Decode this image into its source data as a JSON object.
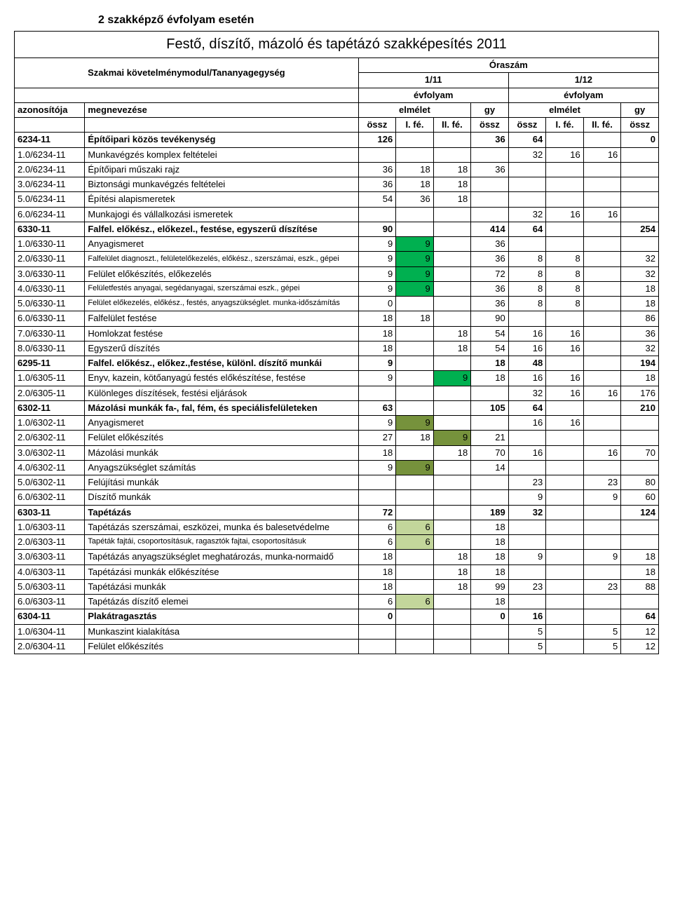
{
  "top_heading": "2 szakképző évfolyam esetén",
  "title": "Festő, díszítő, mázoló és tapétázó szakképesítés 2011",
  "headers": {
    "module": "Szakmai követelménymodul/Tananyagegység",
    "oraszam": "Óraszám",
    "y111": "1/11",
    "y112": "1/12",
    "evfolyam": "évfolyam",
    "azon": "azonosítója",
    "megnev": "megnevezése",
    "elmelet": "elmélet",
    "gy": "gy",
    "ossz": "össz",
    "ife": "I. fé.",
    "iife": "II. fé."
  },
  "highlight_colors": {
    "green_dark": "#00b050",
    "green_olive": "#76923c",
    "green_light": "#c3d69b"
  },
  "rows": [
    {
      "id": "6234-11",
      "name": "Építőipari közös tevékenység",
      "bold": true,
      "v": [
        "126",
        "",
        "",
        "36",
        "64",
        "",
        "",
        "0"
      ]
    },
    {
      "id": "1.0/6234-11",
      "name": "Munkavégzés komplex feltételei",
      "v": [
        "",
        "",
        "",
        "",
        "32",
        "16",
        "16",
        ""
      ]
    },
    {
      "id": "2.0/6234-11",
      "name": "Építőipari műszaki rajz",
      "v": [
        "36",
        "18",
        "18",
        "36",
        "",
        "",
        "",
        ""
      ]
    },
    {
      "id": "3.0/6234-11",
      "name": "Biztonsági munkavégzés feltételei",
      "v": [
        "36",
        "18",
        "18",
        "",
        "",
        "",
        "",
        ""
      ]
    },
    {
      "id": "5.0/6234-11",
      "name": "Építési alapismeretek",
      "v": [
        "54",
        "36",
        "18",
        "",
        "",
        "",
        "",
        ""
      ]
    },
    {
      "id": "6.0/6234-11",
      "name": "Munkajogi és vállalkozási ismeretek",
      "v": [
        "",
        "",
        "",
        "",
        "32",
        "16",
        "16",
        ""
      ]
    },
    {
      "id": "6330-11",
      "name": "Falfel. előkész., előkezel., festése, egyszerű díszítése",
      "bold": true,
      "v": [
        "90",
        "",
        "",
        "414",
        "64",
        "",
        "",
        "254"
      ]
    },
    {
      "id": "1.0/6330-11",
      "name": "Anyagismeret",
      "v": [
        "9",
        "9",
        "",
        "36",
        "",
        "",
        "",
        ""
      ],
      "hl": [
        null,
        "green_dark",
        null,
        null,
        null,
        null,
        null,
        null
      ]
    },
    {
      "id": "2.0/6330-11",
      "name": "Falfelület diagnoszt., felületelőkezelés, előkész., szerszámai, eszk., gépei",
      "small": true,
      "v": [
        "9",
        "9",
        "",
        "36",
        "8",
        "8",
        "",
        "32"
      ],
      "hl": [
        null,
        "green_dark",
        null,
        null,
        null,
        null,
        null,
        null
      ]
    },
    {
      "id": "3.0/6330-11",
      "name": "Felület előkészítés, előkezelés",
      "v": [
        "9",
        "9",
        "",
        "72",
        "8",
        "8",
        "",
        "32"
      ],
      "hl": [
        null,
        "green_dark",
        null,
        null,
        null,
        null,
        null,
        null
      ]
    },
    {
      "id": "4.0/6330-11",
      "name": "Felületfestés anyagai, segédanyagai, szerszámai eszk., gépei",
      "small": true,
      "v": [
        "9",
        "9",
        "",
        "36",
        "8",
        "8",
        "",
        "18"
      ],
      "hl": [
        null,
        "green_dark",
        null,
        null,
        null,
        null,
        null,
        null
      ]
    },
    {
      "id": "5.0/6330-11",
      "name": "Felület előkezelés, előkész., festés, anyagszükséglet. munka-időszámítás",
      "small": true,
      "v": [
        "0",
        "",
        "",
        "36",
        "8",
        "8",
        "",
        "18"
      ]
    },
    {
      "id": "6.0/6330-11",
      "name": "Falfelület festése",
      "v": [
        "18",
        "18",
        "",
        "90",
        "",
        "",
        "",
        "86"
      ]
    },
    {
      "id": "7.0/6330-11",
      "name": "Homlokzat festése",
      "v": [
        "18",
        "",
        "18",
        "54",
        "16",
        "16",
        "",
        "36"
      ]
    },
    {
      "id": "8.0/6330-11",
      "name": "Egyszerű díszítés",
      "v": [
        "18",
        "",
        "18",
        "54",
        "16",
        "16",
        "",
        "32"
      ]
    },
    {
      "id": "6295-11",
      "name": "Falfel. előkész., előkez.,festése, különl. díszítő munkái",
      "bold": true,
      "v": [
        "9",
        "",
        "",
        "18",
        "48",
        "",
        "",
        "194"
      ]
    },
    {
      "id": "1.0/6305-11",
      "name": "Enyv, kazein, kötőanyagú festés előkészítése, festése",
      "v": [
        "9",
        "",
        "9",
        "18",
        "16",
        "16",
        "",
        "18"
      ],
      "hl": [
        null,
        null,
        "green_dark",
        null,
        null,
        null,
        null,
        null
      ]
    },
    {
      "id": "2.0/6305-11",
      "name": "Különleges díszítések, festési eljárások",
      "v": [
        "",
        "",
        "",
        "",
        "32",
        "16",
        "16",
        "176"
      ]
    },
    {
      "id": "6302-11",
      "name": "Mázolási munkák fa-, fal, fém, és speciálisfelületeken",
      "bold": true,
      "v": [
        "63",
        "",
        "",
        "105",
        "64",
        "",
        "",
        "210"
      ]
    },
    {
      "id": "1.0/6302-11",
      "name": "Anyagismeret",
      "v": [
        "9",
        "9",
        "",
        "",
        "16",
        "16",
        "",
        ""
      ],
      "hl": [
        null,
        "green_olive",
        null,
        null,
        null,
        null,
        null,
        null
      ]
    },
    {
      "id": "2.0/6302-11",
      "name": "Felület előkészítés",
      "v": [
        "27",
        "18",
        "9",
        "21",
        "",
        "",
        "",
        ""
      ],
      "hl": [
        null,
        null,
        "green_olive",
        null,
        null,
        null,
        null,
        null
      ]
    },
    {
      "id": "3.0/6302-11",
      "name": "Mázolási munkák",
      "v": [
        "18",
        "",
        "18",
        "70",
        "16",
        "",
        "16",
        "70"
      ]
    },
    {
      "id": "4.0/6302-11",
      "name": "Anyagszükséglet számítás",
      "v": [
        "9",
        "9",
        "",
        "14",
        "",
        "",
        "",
        ""
      ],
      "hl": [
        null,
        "green_olive",
        null,
        null,
        null,
        null,
        null,
        null
      ]
    },
    {
      "id": "5.0/6302-11",
      "name": "Felújítási munkák",
      "v": [
        "",
        "",
        "",
        "",
        "23",
        "",
        "23",
        "80"
      ]
    },
    {
      "id": "6.0/6302-11",
      "name": "Díszítő munkák",
      "v": [
        "",
        "",
        "",
        "",
        "9",
        "",
        "9",
        "60"
      ]
    },
    {
      "id": "6303-11",
      "name": "Tapétázás",
      "bold": true,
      "v": [
        "72",
        "",
        "",
        "189",
        "32",
        "",
        "",
        "124"
      ]
    },
    {
      "id": "1.0/6303-11",
      "name": "Tapétázás szerszámai, eszközei, munka és balesetvédelme",
      "v": [
        "6",
        "6",
        "",
        "18",
        "",
        "",
        "",
        ""
      ],
      "hl": [
        null,
        "green_light",
        null,
        null,
        null,
        null,
        null,
        null
      ]
    },
    {
      "id": "2.0/6303-11",
      "name": "Tapéták fajtái, csoportosításuk, ragasztók fajtai, csoportosításuk",
      "small": true,
      "v": [
        "6",
        "6",
        "",
        "18",
        "",
        "",
        "",
        ""
      ],
      "hl": [
        null,
        "green_light",
        null,
        null,
        null,
        null,
        null,
        null
      ]
    },
    {
      "id": "3.0/6303-11",
      "name": "Tapétázás anyagszükséglet meghatározás, munka-normaidő",
      "v": [
        "18",
        "",
        "18",
        "18",
        "9",
        "",
        "9",
        "18"
      ]
    },
    {
      "id": "4.0/6303-11",
      "name": "Tapétázási munkák előkészítése",
      "v": [
        "18",
        "",
        "18",
        "18",
        "",
        "",
        "",
        "18"
      ]
    },
    {
      "id": "5.0/6303-11",
      "name": "Tapétázási munkák",
      "v": [
        "18",
        "",
        "18",
        "99",
        "23",
        "",
        "23",
        "88"
      ]
    },
    {
      "id": "6.0/6303-11",
      "name": "Tapétázás díszítő elemei",
      "v": [
        "6",
        "6",
        "",
        "18",
        "",
        "",
        "",
        ""
      ],
      "hl": [
        null,
        "green_light",
        null,
        null,
        null,
        null,
        null,
        null
      ]
    },
    {
      "id": "6304-11",
      "name": "Plakátragasztás",
      "bold": true,
      "v": [
        "0",
        "",
        "",
        "0",
        "16",
        "",
        "",
        "64"
      ]
    },
    {
      "id": "1.0/6304-11",
      "name": "Munkaszint kialakítása",
      "v": [
        "",
        "",
        "",
        "",
        "5",
        "",
        "5",
        "12"
      ]
    },
    {
      "id": "2.0/6304-11",
      "name": "Felület előkészítés",
      "v": [
        "",
        "",
        "",
        "",
        "5",
        "",
        "5",
        "12"
      ]
    }
  ]
}
